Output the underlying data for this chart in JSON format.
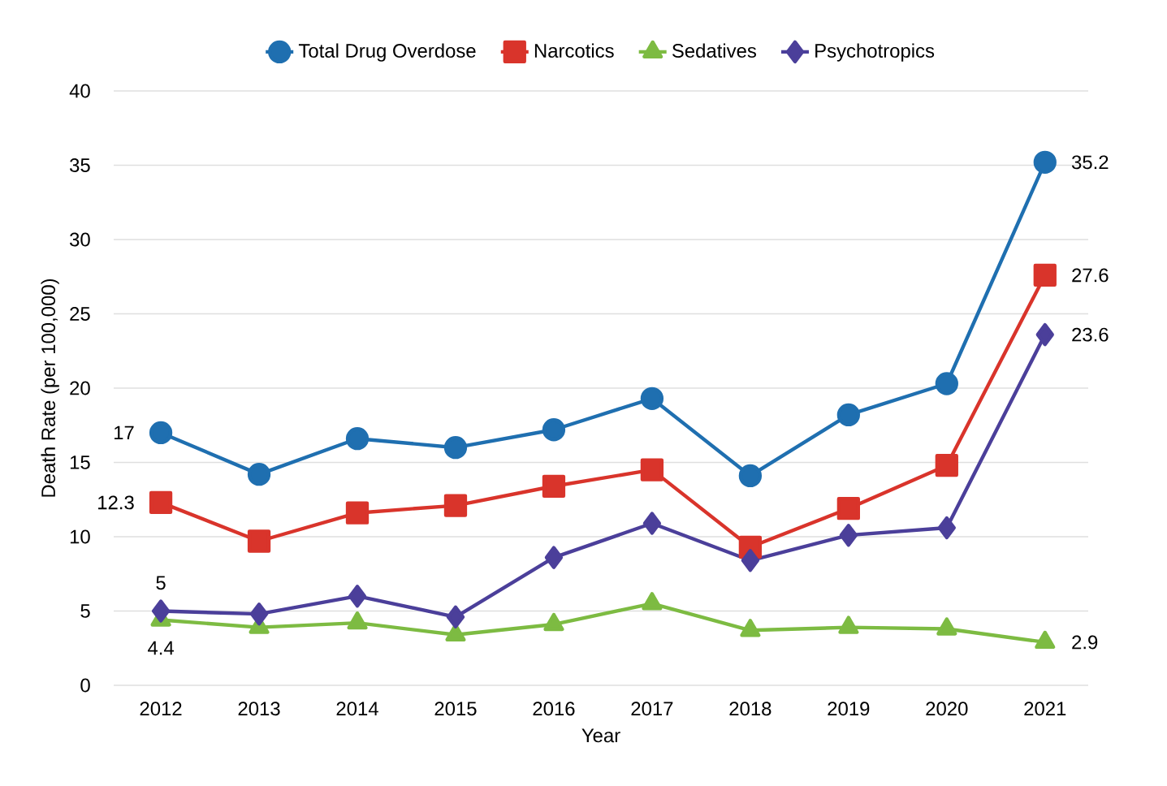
{
  "chart_data": {
    "type": "line",
    "xlabel": "Year",
    "ylabel": "Death Rate (per 100,000)",
    "categories": [
      "2012",
      "2013",
      "2014",
      "2015",
      "2016",
      "2017",
      "2018",
      "2019",
      "2020",
      "2021"
    ],
    "series": [
      {
        "name": "Total Drug Overdose",
        "color": "#1f6fb0",
        "marker": "circle",
        "values": [
          17,
          14.2,
          16.6,
          16.0,
          17.2,
          19.3,
          14.1,
          18.2,
          20.3,
          35.2
        ],
        "value_labels": [
          "17",
          null,
          null,
          null,
          null,
          null,
          null,
          null,
          null,
          "35.2"
        ]
      },
      {
        "name": "Narcotics",
        "color": "#d9342b",
        "marker": "square",
        "values": [
          12.3,
          9.7,
          11.6,
          12.1,
          13.4,
          14.5,
          9.3,
          11.9,
          14.8,
          27.6
        ],
        "value_labels": [
          "12.3",
          null,
          null,
          null,
          null,
          null,
          null,
          null,
          null,
          "27.6"
        ]
      },
      {
        "name": "Sedatives",
        "color": "#7dbb42",
        "marker": "triangle",
        "values": [
          4.4,
          3.9,
          4.2,
          3.4,
          4.1,
          5.5,
          3.7,
          3.9,
          3.8,
          2.9
        ],
        "value_labels": [
          "4.4",
          null,
          null,
          null,
          null,
          null,
          null,
          null,
          null,
          "2.9"
        ]
      },
      {
        "name": "Psychotropics",
        "color": "#4b3f9a",
        "marker": "diamond",
        "values": [
          5,
          4.8,
          6.0,
          4.6,
          8.6,
          10.9,
          8.4,
          10.1,
          10.6,
          23.6
        ],
        "value_labels": [
          "5",
          null,
          null,
          null,
          null,
          null,
          null,
          null,
          null,
          "23.6"
        ]
      }
    ],
    "ylim": [
      0,
      40
    ],
    "yticks": [
      0,
      5,
      10,
      15,
      20,
      25,
      30,
      35,
      40
    ],
    "grid": "y",
    "legend": "top",
    "line_style": "solid"
  }
}
